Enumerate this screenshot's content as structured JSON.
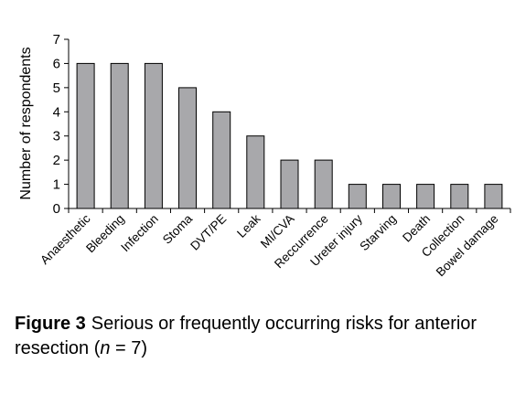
{
  "chart_data": {
    "type": "bar",
    "categories": [
      "Anaesthetic",
      "Bleeding",
      "Infection",
      "Stoma",
      "DVT/PE",
      "Leak",
      "MI/CVA",
      "Reccurrence",
      "Ureter injury",
      "Starving",
      "Death",
      "Collection",
      "Bowel damage"
    ],
    "values": [
      6,
      6,
      6,
      5,
      4,
      3,
      2,
      2,
      1,
      1,
      1,
      1,
      1
    ],
    "xlabel": "",
    "ylabel": "Number of respondents",
    "ylim": [
      0,
      7
    ],
    "yticks": [
      0,
      1,
      2,
      3,
      4,
      5,
      6,
      7
    ],
    "grid": false,
    "bar_color": "#a8a8ab"
  },
  "caption": {
    "label": "Figure 3",
    "text_part1": "Serious or frequently occurring risks for anterior resection (",
    "n_var": "n",
    "text_part2": " = 7)"
  }
}
